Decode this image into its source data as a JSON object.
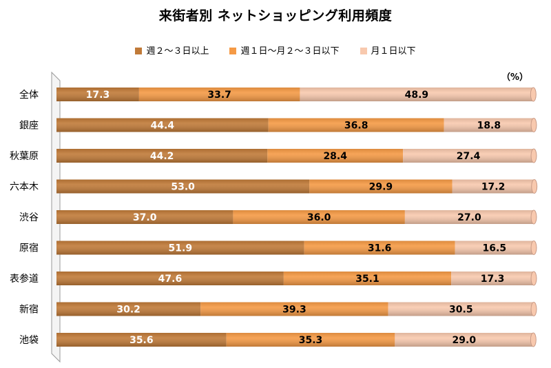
{
  "chart_data": {
    "type": "bar",
    "orientation": "horizontal",
    "stacked": true,
    "title": "来街者別 ネットショッピング利用頻度",
    "unit_label": "（%）",
    "legend_position": "top",
    "xlim": [
      0,
      100
    ],
    "categories": [
      "全体",
      "銀座",
      "秋葉原",
      "六本木",
      "渋谷",
      "原宿",
      "表参道",
      "新宿",
      "池袋"
    ],
    "series": [
      {
        "name": "週２～３日以上",
        "color": "#c07a38",
        "label_color": "#ffffff",
        "values": [
          17.3,
          44.4,
          44.2,
          53.0,
          37.0,
          51.9,
          47.6,
          30.2,
          35.6
        ]
      },
      {
        "name": "週１日～月２～３日以下",
        "color": "#f59a45",
        "label_color": "#000000",
        "values": [
          33.7,
          36.8,
          28.4,
          29.9,
          36.0,
          31.6,
          35.1,
          39.3,
          35.3
        ]
      },
      {
        "name": "月１日以下",
        "color": "#f8c9ae",
        "label_color": "#000000",
        "values": [
          48.9,
          18.8,
          27.4,
          17.2,
          27.0,
          16.5,
          17.3,
          30.5,
          29.0
        ]
      }
    ]
  }
}
